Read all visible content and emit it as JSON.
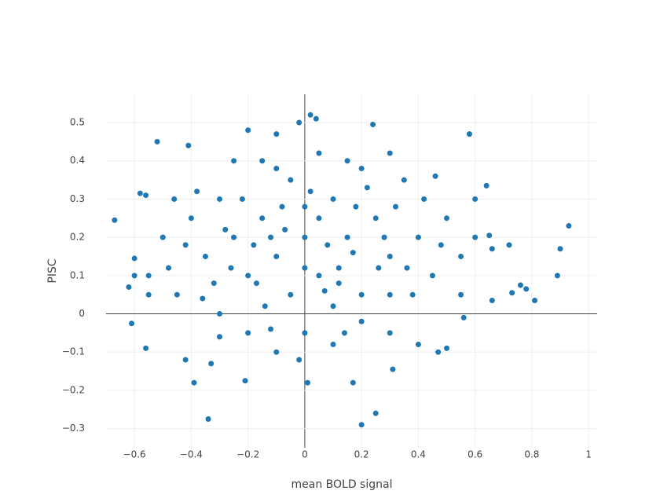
{
  "chart_data": {
    "type": "scatter",
    "x_label": "mean BOLD signal",
    "y_label": "PISC",
    "color": "#1f77b4",
    "grid": true,
    "zeroline": true,
    "xlim": [
      -0.7,
      1.03
    ],
    "ylim": [
      -0.35,
      0.574
    ],
    "xticks": [
      {
        "value": -0.6,
        "label": "−0.6"
      },
      {
        "value": -0.4,
        "label": "−0.4"
      },
      {
        "value": -0.2,
        "label": "−0.2"
      },
      0,
      0.2,
      0.4,
      0.6,
      0.8,
      1
    ],
    "yticks": [
      {
        "value": -0.3,
        "label": "−0.3"
      },
      {
        "value": -0.2,
        "label": "−0.2"
      },
      {
        "value": -0.1,
        "label": "−0.1"
      },
      0,
      0.1,
      0.2,
      0.3,
      0.4,
      0.5
    ],
    "x": [
      -0.67,
      -0.52,
      -0.41,
      -0.58,
      -0.56,
      -0.62,
      -0.6,
      -0.61,
      -0.56,
      -0.55,
      -0.6,
      -0.42,
      -0.39,
      -0.34,
      0.04,
      0.02,
      -0.02,
      0.24,
      0.58,
      0.93,
      0.9,
      0.89,
      0.81,
      0.78,
      0.76,
      0.73,
      0.72,
      0.66,
      0.66,
      0.65,
      0.64,
      0.6,
      0.2,
      0.25,
      -0.2,
      -0.1,
      0.5,
      0.47,
      0.56,
      0.31,
      0.17,
      -0.21,
      0.01,
      -0.33,
      0.4,
      -0.3,
      -0.25,
      -0.2,
      -0.15,
      -0.1,
      -0.05,
      0,
      0.05,
      0.1,
      0.15,
      0.2,
      0.25,
      0.3,
      0.35,
      0.4,
      0.45,
      0.5,
      -0.35,
      -0.4,
      -0.45,
      -0.3,
      -0.2,
      -0.1,
      0,
      0.1,
      0.2,
      0.3,
      -0.25,
      -0.15,
      0.05,
      0.15,
      0.3,
      -0.05,
      0.05,
      -0.12,
      0.12,
      0.22,
      -0.22,
      -0.32,
      0.32,
      0.42,
      -0.42,
      -0.5,
      0.55,
      0.55,
      -0.08,
      0.08,
      0.18,
      -0.18,
      0.0,
      0.02,
      -0.02,
      0.14,
      -0.14,
      0.26,
      -0.26,
      0.38,
      -0.38,
      0.46,
      -0.46,
      0.1,
      -0.1,
      0.2,
      -0.3,
      0.3,
      0.0,
      0.07,
      -0.07,
      0.17,
      -0.17,
      0.28,
      -0.28,
      0.36,
      -0.36,
      0.48,
      -0.48,
      0.6,
      -0.55,
      0.12,
      -0.12
    ],
    "y": [
      0.245,
      0.45,
      0.44,
      0.315,
      0.31,
      0.07,
      0.1,
      -0.025,
      -0.09,
      0.05,
      0.145,
      -0.12,
      -0.18,
      -0.275,
      0.51,
      0.52,
      0.5,
      0.495,
      0.47,
      0.23,
      0.17,
      0.1,
      0.035,
      0.065,
      0.075,
      0.055,
      0.18,
      0.035,
      0.17,
      0.205,
      0.335,
      0.3,
      -0.29,
      -0.26,
      0.48,
      0.47,
      -0.09,
      -0.1,
      -0.01,
      -0.145,
      -0.18,
      -0.175,
      -0.18,
      -0.13,
      -0.08,
      0.3,
      0.2,
      0.1,
      0.25,
      0.15,
      0.35,
      0.2,
      0.1,
      0.3,
      0.2,
      0.05,
      0.25,
      0.15,
      0.35,
      0.2,
      0.1,
      0.25,
      0.15,
      0.25,
      0.05,
      0.0,
      -0.05,
      -0.1,
      -0.05,
      -0.08,
      -0.02,
      0.05,
      0.4,
      0.4,
      0.42,
      0.4,
      0.42,
      0.05,
      0.25,
      0.2,
      0.12,
      0.33,
      0.3,
      0.08,
      0.28,
      0.3,
      0.18,
      0.2,
      0.15,
      0.05,
      0.28,
      0.18,
      0.28,
      0.18,
      0.12,
      0.32,
      -0.12,
      -0.05,
      0.02,
      0.12,
      0.12,
      0.05,
      0.32,
      0.36,
      0.3,
      0.02,
      0.38,
      0.38,
      -0.06,
      -0.05,
      0.28,
      0.06,
      0.22,
      0.16,
      0.08,
      0.2,
      0.22,
      0.12,
      0.04,
      0.18,
      0.12,
      0.2,
      0.1,
      0.08,
      -0.04
    ]
  }
}
